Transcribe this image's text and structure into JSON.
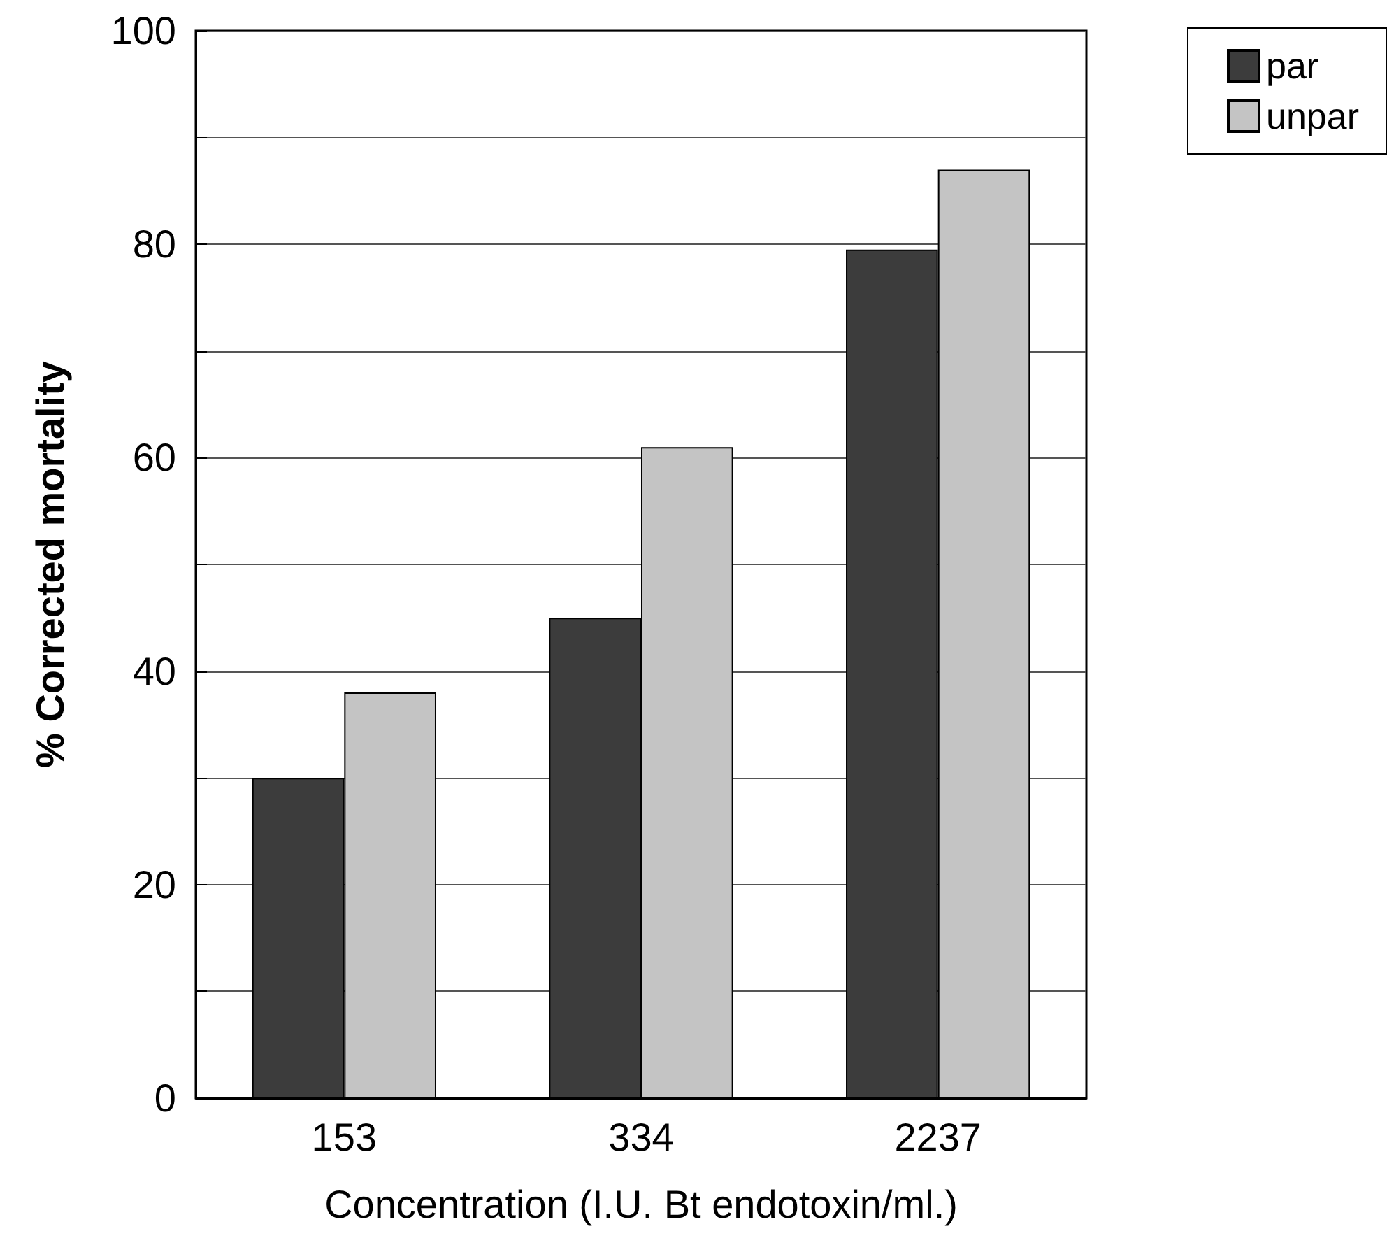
{
  "chart_data": {
    "type": "bar",
    "xlabel": "Concentration (I.U. Bt endotoxin/ml.)",
    "ylabel": "% Corrected mortality",
    "categories": [
      "153",
      "334",
      "2237"
    ],
    "series": [
      {
        "name": "par",
        "color": "#3c3c3c",
        "values": [
          30,
          45,
          79.5
        ]
      },
      {
        "name": "unpar",
        "color": "#c4c4c4",
        "values": [
          38,
          61,
          87
        ]
      }
    ],
    "ylim": [
      0,
      100
    ],
    "yticks": [
      0,
      {
        "value": 10,
        "label": null
      },
      20,
      {
        "value": 30,
        "label": null
      },
      40,
      {
        "value": 50,
        "label": null
      },
      60,
      {
        "value": 70,
        "label": null
      },
      80,
      {
        "value": 90,
        "label": null
      },
      100
    ],
    "grid": "y",
    "legend": "top right"
  }
}
